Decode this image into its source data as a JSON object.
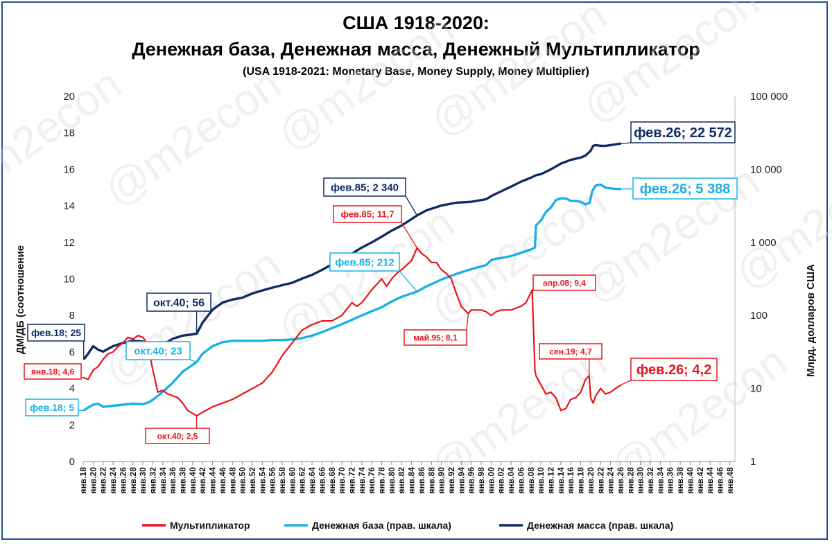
{
  "header": {
    "title": "США 1918-2020:",
    "subtitle": "Денежная база, Денежная масса, Денежный Мультипликатор",
    "subtitle_en": "(USA 1918-2021: Monetary Base, Money Supply,  Money Multiplier)"
  },
  "watermark": "@m2econ",
  "colors": {
    "multiplier": "#e8141b",
    "base": "#1ab0e6",
    "supply": "#102a63",
    "frame": "#1f4e9a"
  },
  "chart_data": {
    "type": "line",
    "ylabel_left": "ДМ/ДБ (соотношение",
    "ylabel_right": "Млрд. долларов США",
    "ylim_left": [
      0,
      20
    ],
    "left_ticks": [
      0,
      2,
      4,
      6,
      8,
      10,
      12,
      14,
      16,
      18,
      20
    ],
    "right_scale": "log",
    "ylim_right": [
      1,
      100000
    ],
    "right_ticks": [
      {
        "value": 1,
        "label": "1"
      },
      {
        "value": 10,
        "label": "10"
      },
      {
        "value": 100,
        "label": "100"
      },
      {
        "value": 1000,
        "label": "1 000"
      },
      {
        "value": 10000,
        "label": "10 000"
      },
      {
        "value": 100000,
        "label": "100 000"
      }
    ],
    "x_ticks": [
      "янв.18",
      "янв.20",
      "янв.22",
      "янв.24",
      "янв.26",
      "янв.28",
      "янв.30",
      "янв.32",
      "янв.34",
      "янв.36",
      "янв.38",
      "янв.40",
      "янв.42",
      "янв.44",
      "янв.46",
      "янв.48",
      "янв.50",
      "янв.52",
      "янв.54",
      "янв.56",
      "янв.58",
      "янв.60",
      "янв.62",
      "янв.64",
      "янв.66",
      "янв.68",
      "янв.70",
      "янв.72",
      "янв.74",
      "янв.76",
      "янв.78",
      "янв.80",
      "янв.82",
      "янв.84",
      "янв.86",
      "янв.88",
      "янв.90",
      "янв.92",
      "янв.94",
      "янв.96",
      "янв.98",
      "янв.00",
      "янв.02",
      "янв.04",
      "янв.06",
      "янв.08",
      "янв.10",
      "янв.12",
      "янв.14",
      "янв.16",
      "янв.18",
      "янв.20",
      "янв.22",
      "янв.24",
      "янв.26",
      "янв.28",
      "янв.30",
      "янв.32",
      "янв.34",
      "янв.36",
      "янв.38",
      "янв.40",
      "янв.42",
      "янв.44",
      "янв.46",
      "янв.48"
    ],
    "x_start_year": 1918,
    "x_end_year": 2049,
    "series": [
      {
        "name": "Мультипликатор",
        "axis": "left",
        "color": "#e8141b",
        "x": [
          1918,
          1919,
          1920,
          1921,
          1922,
          1923,
          1924,
          1925,
          1926,
          1927,
          1928,
          1929,
          1930,
          1931,
          1932,
          1933,
          1934,
          1935,
          1936,
          1937,
          1938,
          1939,
          1940.8,
          1942,
          1944,
          1946,
          1948,
          1950,
          1952,
          1954,
          1956,
          1958,
          1960,
          1962,
          1964,
          1966,
          1968,
          1970,
          1972,
          1973,
          1974,
          1976,
          1978,
          1979,
          1980,
          1981,
          1982,
          1984,
          1985.1,
          1986,
          1987,
          1988,
          1989,
          1990,
          1991,
          1992,
          1993,
          1994,
          1995.4,
          1996,
          1998,
          1999,
          2000,
          2001,
          2002,
          2004,
          2006,
          2007,
          2008.25,
          2008.8,
          2009,
          2010,
          2011,
          2012,
          2013,
          2014,
          2015,
          2016,
          2017,
          2018,
          2019,
          2019.7,
          2020,
          2020.5,
          2021,
          2022,
          2023,
          2024,
          2025,
          2026.1
        ],
        "y": [
          4.6,
          4.5,
          5.0,
          5.2,
          5.6,
          5.9,
          6.0,
          6.3,
          6.5,
          6.8,
          6.7,
          6.9,
          6.8,
          6.4,
          5.0,
          3.8,
          3.9,
          3.7,
          3.6,
          3.5,
          3.2,
          2.8,
          2.5,
          2.7,
          3.0,
          3.2,
          3.4,
          3.7,
          4.0,
          4.3,
          4.9,
          5.8,
          6.5,
          7.2,
          7.5,
          7.7,
          7.7,
          8.0,
          8.7,
          8.5,
          8.7,
          9.4,
          10.0,
          9.6,
          10.0,
          10.3,
          10.5,
          11.0,
          11.7,
          11.4,
          11.2,
          10.9,
          10.9,
          10.5,
          10.3,
          10.0,
          9.2,
          8.5,
          8.1,
          8.3,
          8.3,
          8.2,
          8.0,
          8.2,
          8.3,
          8.3,
          8.5,
          8.7,
          9.4,
          5.0,
          4.7,
          4.2,
          3.7,
          3.8,
          3.5,
          2.8,
          2.9,
          3.4,
          3.5,
          3.8,
          4.5,
          4.7,
          3.5,
          3.2,
          3.6,
          4.0,
          3.7,
          3.8,
          4.0,
          4.2
        ]
      },
      {
        "name": "Денежная база (прав. шкала)",
        "axis": "right",
        "color": "#1ab0e6",
        "x": [
          1918.1,
          1919,
          1920,
          1921,
          1922,
          1924,
          1926,
          1928,
          1930,
          1931,
          1932,
          1934,
          1936,
          1938,
          1940.8,
          1942,
          1944,
          1946,
          1948,
          1950,
          1952,
          1954,
          1956,
          1958,
          1960,
          1962,
          1964,
          1966,
          1968,
          1970,
          1972,
          1974,
          1976,
          1978,
          1980,
          1982,
          1985.1,
          1987,
          1990,
          1993,
          1996,
          1999,
          2000,
          2001,
          2002,
          2004,
          2006,
          2008,
          2008.8,
          2009,
          2010,
          2011,
          2012,
          2013,
          2014,
          2015,
          2016,
          2017,
          2018,
          2019,
          2019.8,
          2020.3,
          2021,
          2022,
          2023,
          2024,
          2025,
          2026.1
        ],
        "y": [
          5,
          5.5,
          6,
          6.2,
          5.6,
          5.8,
          6.0,
          6.2,
          6.1,
          6.4,
          7,
          9,
          12,
          17,
          23,
          30,
          38,
          43,
          45,
          45,
          45,
          45,
          46,
          46,
          47,
          49,
          53,
          59,
          67,
          76,
          87,
          100,
          114,
          130,
          155,
          180,
          212,
          250,
          310,
          370,
          430,
          490,
          570,
          600,
          610,
          650,
          720,
          800,
          850,
          1700,
          2000,
          2600,
          3000,
          3800,
          4000,
          4000,
          3700,
          3700,
          3600,
          3300,
          3500,
          5000,
          6000,
          6200,
          5600,
          5500,
          5400,
          5388
        ]
      },
      {
        "name": "Денежная масса (прав. шкала)",
        "axis": "right",
        "color": "#102a63",
        "x": [
          1918.1,
          1919,
          1920,
          1921,
          1922,
          1924,
          1926,
          1928,
          1930,
          1931,
          1932,
          1934,
          1936,
          1938,
          1940.8,
          1942,
          1944,
          1946,
          1948,
          1950,
          1952,
          1954,
          1956,
          1958,
          1960,
          1962,
          1964,
          1966,
          1968,
          1970,
          1972,
          1974,
          1976,
          1978,
          1980,
          1982,
          1985.1,
          1987,
          1990,
          1993,
          1996,
          1999,
          2000,
          2002,
          2004,
          2006,
          2008,
          2009,
          2010,
          2012,
          2014,
          2016,
          2018,
          2019,
          2020,
          2020.5,
          2021,
          2022,
          2023,
          2024,
          2025,
          2026.1
        ],
        "y": [
          25,
          30,
          38,
          34,
          32,
          38,
          42,
          45,
          44,
          40,
          35,
          40,
          48,
          53,
          56,
          80,
          120,
          150,
          165,
          175,
          200,
          220,
          240,
          260,
          280,
          320,
          360,
          420,
          500,
          580,
          700,
          850,
          1000,
          1200,
          1450,
          1700,
          2340,
          2750,
          3200,
          3500,
          3600,
          3900,
          4300,
          5000,
          5800,
          6800,
          7700,
          8300,
          8600,
          10000,
          12000,
          13500,
          14500,
          15500,
          18000,
          21000,
          21500,
          21000,
          21000,
          21500,
          22000,
          22572
        ]
      }
    ],
    "annotations": [
      {
        "text": "фев.26; 22 572",
        "series": "supply",
        "x": 2026.1,
        "y": 22572
      },
      {
        "text": "фев.85; 2 340",
        "series": "supply",
        "x": 1985.1,
        "y": 2340
      },
      {
        "text": "окт.40; 56",
        "series": "supply",
        "x": 1940.8,
        "y": 56
      },
      {
        "text": "фев.18; 25",
        "series": "supply",
        "x": 1918.1,
        "y": 25
      },
      {
        "text": "фев.26; 5 388",
        "series": "base",
        "x": 2026.1,
        "y": 5388
      },
      {
        "text": "фев.85; 212",
        "series": "base",
        "x": 1985.1,
        "y": 212
      },
      {
        "text": "окт.40; 23",
        "series": "base",
        "x": 1940.8,
        "y": 23
      },
      {
        "text": "фев.18; 5",
        "series": "base",
        "x": 1918.1,
        "y": 5
      },
      {
        "text": "фев.85;  11,7",
        "series": "multiplier",
        "x": 1985.1,
        "y": 11.7
      },
      {
        "text": "янв.18;   4,6",
        "series": "multiplier",
        "x": 1918,
        "y": 4.6
      },
      {
        "text": "окт.40;   2,5",
        "series": "multiplier",
        "x": 1940.8,
        "y": 2.5
      },
      {
        "text": "май.95;   8,1",
        "series": "multiplier",
        "x": 1995.4,
        "y": 8.1
      },
      {
        "text": "апр.08;   9,4",
        "series": "multiplier",
        "x": 2008.25,
        "y": 9.4
      },
      {
        "text": "сен.19;   4,7",
        "series": "multiplier",
        "x": 2019.7,
        "y": 4.7
      },
      {
        "text": "фев.26;   4,2",
        "series": "multiplier",
        "x": 2026.1,
        "y": 4.2
      }
    ],
    "legend": {
      "placement": "bottom",
      "items": [
        {
          "label": "Мультипликатор",
          "color": "#e8141b"
        },
        {
          "label": "Денежная база (прав. шкала)",
          "color": "#1ab0e6"
        },
        {
          "label": "Денежная масса (прав. шкала)",
          "color": "#102a63"
        }
      ]
    }
  }
}
